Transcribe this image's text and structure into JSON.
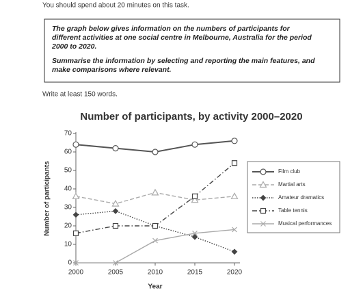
{
  "header": {
    "instruction": "You should spend about 20 minutes on this task."
  },
  "prompt": {
    "paragraphs": [
      [
        "The graph below gives information on the numbers of participants for",
        "different activities at one social centre in Melbourne, Australia for the period",
        "2000 to 2020."
      ],
      [
        "Summarise the information by selecting and reporting the main features, and",
        "make comparisons where relevant."
      ]
    ]
  },
  "footer": {
    "instruction": "Write at least 150 words."
  },
  "chart_data": {
    "type": "line",
    "title": "Number of participants, by activity 2000–2020",
    "x_label": "Year",
    "y_label": "Number of participants",
    "x": [
      2000,
      2005,
      2010,
      2015,
      2020
    ],
    "xlim": [
      2000,
      2020
    ],
    "xticks": [
      2000,
      2005,
      2010,
      2015,
      2020
    ],
    "ylim": [
      0,
      70
    ],
    "yticks": [
      0,
      10,
      20,
      30,
      40,
      50,
      60,
      70
    ],
    "grid": false,
    "legend": "right",
    "series": [
      {
        "name": "Film club",
        "color": "#555555",
        "marker": "circle",
        "line_style": "solid",
        "values": [
          64,
          62,
          60,
          64,
          66
        ]
      },
      {
        "name": "Martial arts",
        "color": "#aaaaaa",
        "marker": "triangle",
        "line_style": "dashed",
        "values": [
          36,
          32,
          38,
          34,
          36
        ]
      },
      {
        "name": "Amateur dramatics",
        "color": "#444444",
        "marker": "diamond",
        "line_style": "dotted",
        "values": [
          26,
          28,
          20,
          14,
          6
        ]
      },
      {
        "name": "Table tennis",
        "color": "#444444",
        "marker": "square",
        "line_style": "dashdot",
        "values": [
          16,
          20,
          20,
          36,
          54
        ]
      },
      {
        "name": "Musical performances",
        "color": "#aaaaaa",
        "marker": "x",
        "line_style": "solid",
        "values": [
          0,
          0,
          12,
          16,
          18
        ]
      }
    ]
  }
}
